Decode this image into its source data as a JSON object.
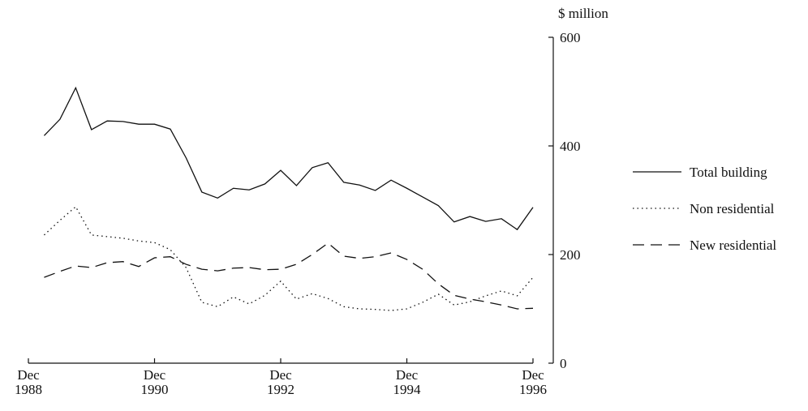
{
  "chart_data": {
    "type": "line",
    "y_axis_label": "$ million",
    "x": [
      1,
      2,
      3,
      4,
      5,
      6,
      7,
      8,
      9,
      10,
      11,
      12,
      13,
      14,
      15,
      16,
      17,
      18,
      19,
      20,
      21,
      22,
      23,
      24,
      25,
      26,
      27,
      28,
      29,
      30,
      31,
      32
    ],
    "xlim": [
      0,
      32
    ],
    "xticks": [
      {
        "value": 0,
        "label": "Dec 1988"
      },
      {
        "value": 8,
        "label": "Dec 1990"
      },
      {
        "value": 16,
        "label": "Dec 1992"
      },
      {
        "value": 24,
        "label": "Dec 1994"
      },
      {
        "value": 32,
        "label": "Dec 1996"
      }
    ],
    "ylim": [
      0,
      600
    ],
    "yticks": [
      0,
      200,
      400,
      600
    ],
    "series": [
      {
        "name": "Total building",
        "color": "#111111",
        "dash": "solid",
        "values": [
          419,
          449,
          507,
          430,
          446,
          445,
          440,
          440,
          431,
          378,
          315,
          304,
          322,
          319,
          330,
          355,
          327,
          360,
          369,
          333,
          328,
          318,
          337,
          322,
          306,
          290,
          260,
          270,
          261,
          266,
          246,
          287
        ]
      },
      {
        "name": "Non residential",
        "color": "#111111",
        "dash": "dotted",
        "values": [
          236,
          263,
          288,
          236,
          233,
          230,
          225,
          222,
          209,
          176,
          112,
          104,
          122,
          109,
          125,
          151,
          118,
          128,
          119,
          104,
          100,
          99,
          97,
          100,
          112,
          127,
          107,
          113,
          124,
          133,
          124,
          158
        ]
      },
      {
        "name": "New residential",
        "color": "#111111",
        "dash": "dashed",
        "values": [
          158,
          169,
          179,
          176,
          185,
          187,
          178,
          194,
          196,
          182,
          173,
          170,
          175,
          176,
          172,
          173,
          182,
          200,
          221,
          197,
          193,
          196,
          203,
          191,
          173,
          146,
          125,
          118,
          113,
          107,
          100,
          101
        ]
      }
    ]
  }
}
